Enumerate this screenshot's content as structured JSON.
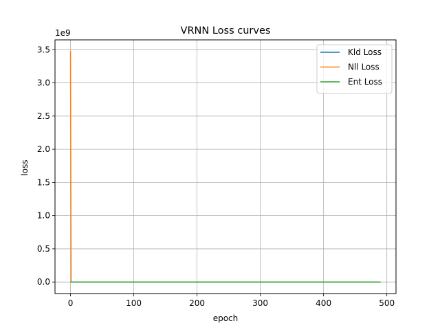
{
  "chart_data": {
    "type": "line",
    "title": "VRNN Loss curves",
    "xlabel": "epoch",
    "ylabel": "loss",
    "y_offset_label": "1e9",
    "xlim": [
      -24.5,
      514.5
    ],
    "ylim": [
      -0.174,
      3.648
    ],
    "y_scale_factor": 1000000000,
    "xticks": [
      0,
      100,
      200,
      300,
      400,
      500
    ],
    "xtick_labels": [
      "0",
      "100",
      "200",
      "300",
      "400",
      "500"
    ],
    "yticks": [
      0.0,
      0.5,
      1.0,
      1.5,
      2.0,
      2.5,
      3.0,
      3.5
    ],
    "ytick_labels": [
      "0.0",
      "0.5",
      "1.0",
      "1.5",
      "2.0",
      "2.5",
      "3.0",
      "3.5"
    ],
    "grid": true,
    "legend_position": "top-right",
    "series": [
      {
        "name": "Kld Loss",
        "color": "#1f77b4",
        "x": [
          0,
          1,
          490
        ],
        "y": [
          0.0,
          0.0,
          0.0
        ]
      },
      {
        "name": "Nll Loss",
        "color": "#ff7f0e",
        "x": [
          0,
          1,
          490
        ],
        "y": [
          3.48,
          0.0,
          0.0
        ]
      },
      {
        "name": "Ent Loss",
        "color": "#2ca02c",
        "x": [
          0,
          1,
          490
        ],
        "y": [
          0.0,
          0.0,
          0.0
        ]
      }
    ]
  }
}
